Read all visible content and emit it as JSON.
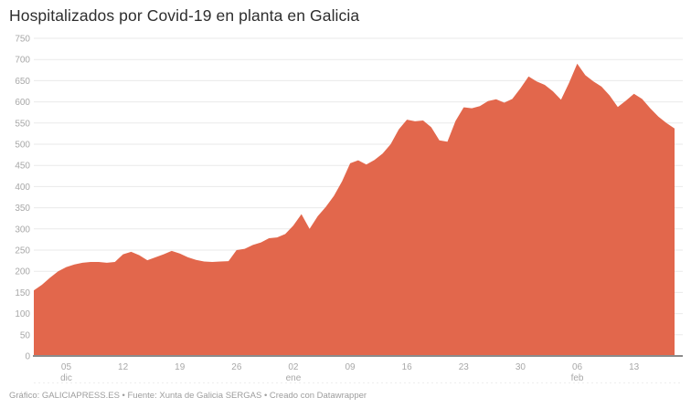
{
  "title": "Hospitalizados por Covid-19 en planta en Galicia",
  "footer": {
    "text": "Gráfico: GALICIAPRESS.ES • Fuente: Xunta de Galicia SERGAS • Creado con Datawrapper"
  },
  "colors": {
    "area_fill": "#e2674c",
    "grid_line": "#eaeaea",
    "baseline": "#8b8b8b",
    "axis_label": "#a8a8a8",
    "title_text": "#2e2e2e",
    "footer_text": "#9d9d9d",
    "tick_dash_line": "#ededed"
  },
  "chart_data": {
    "type": "area",
    "title": "Hospitalizados por Covid-19 en planta en Galicia",
    "xlabel": "",
    "ylabel": "",
    "ylim": [
      0,
      750
    ],
    "yticks": [
      0,
      50,
      100,
      150,
      200,
      250,
      300,
      350,
      400,
      450,
      500,
      550,
      600,
      650,
      700,
      750
    ],
    "grid": "horizontal",
    "legend": "none",
    "x_dates": [
      "01 dic",
      "02 dic",
      "03 dic",
      "04 dic",
      "05 dic",
      "06 dic",
      "07 dic",
      "08 dic",
      "09 dic",
      "10 dic",
      "11 dic",
      "12 dic",
      "13 dic",
      "14 dic",
      "15 dic",
      "16 dic",
      "17 dic",
      "18 dic",
      "19 dic",
      "20 dic",
      "21 dic",
      "22 dic",
      "23 dic",
      "24 dic",
      "25 dic",
      "26 dic",
      "27 dic",
      "28 dic",
      "29 dic",
      "30 dic",
      "31 dic",
      "01 ene",
      "02 ene",
      "03 ene",
      "04 ene",
      "05 ene",
      "06 ene",
      "07 ene",
      "08 ene",
      "09 ene",
      "10 ene",
      "11 ene",
      "12 ene",
      "13 ene",
      "14 ene",
      "15 ene",
      "16 ene",
      "17 ene",
      "18 ene",
      "19 ene",
      "20 ene",
      "21 ene",
      "22 ene",
      "23 ene",
      "24 ene",
      "25 ene",
      "26 ene",
      "27 ene",
      "28 ene",
      "29 ene",
      "30 ene",
      "31 ene",
      "01 feb",
      "02 feb",
      "03 feb",
      "04 feb",
      "05 feb",
      "06 feb",
      "07 feb",
      "08 feb",
      "09 feb",
      "10 feb",
      "11 feb",
      "12 feb",
      "13 feb",
      "14 feb",
      "15 feb",
      "16 feb",
      "17 feb",
      "18 feb"
    ],
    "values": [
      155,
      168,
      185,
      200,
      210,
      216,
      220,
      222,
      222,
      220,
      222,
      240,
      246,
      238,
      226,
      233,
      240,
      248,
      242,
      233,
      227,
      223,
      222,
      223,
      224,
      250,
      253,
      262,
      268,
      278,
      280,
      288,
      308,
      335,
      300,
      330,
      352,
      378,
      412,
      455,
      462,
      452,
      463,
      478,
      500,
      535,
      558,
      554,
      556,
      540,
      509,
      506,
      555,
      587,
      585,
      590,
      602,
      606,
      598,
      607,
      632,
      660,
      648,
      640,
      625,
      605,
      645,
      690,
      663,
      648,
      636,
      615,
      588,
      603,
      619,
      607,
      585,
      565,
      550,
      537
    ],
    "xticks": [
      {
        "index": 4,
        "label": "05",
        "month": "dic"
      },
      {
        "index": 11,
        "label": "12",
        "month": ""
      },
      {
        "index": 18,
        "label": "19",
        "month": ""
      },
      {
        "index": 25,
        "label": "26",
        "month": ""
      },
      {
        "index": 32,
        "label": "02",
        "month": "ene"
      },
      {
        "index": 39,
        "label": "09",
        "month": ""
      },
      {
        "index": 46,
        "label": "16",
        "month": ""
      },
      {
        "index": 53,
        "label": "23",
        "month": ""
      },
      {
        "index": 60,
        "label": "30",
        "month": ""
      },
      {
        "index": 67,
        "label": "06",
        "month": "feb"
      },
      {
        "index": 74,
        "label": "13",
        "month": ""
      }
    ]
  }
}
